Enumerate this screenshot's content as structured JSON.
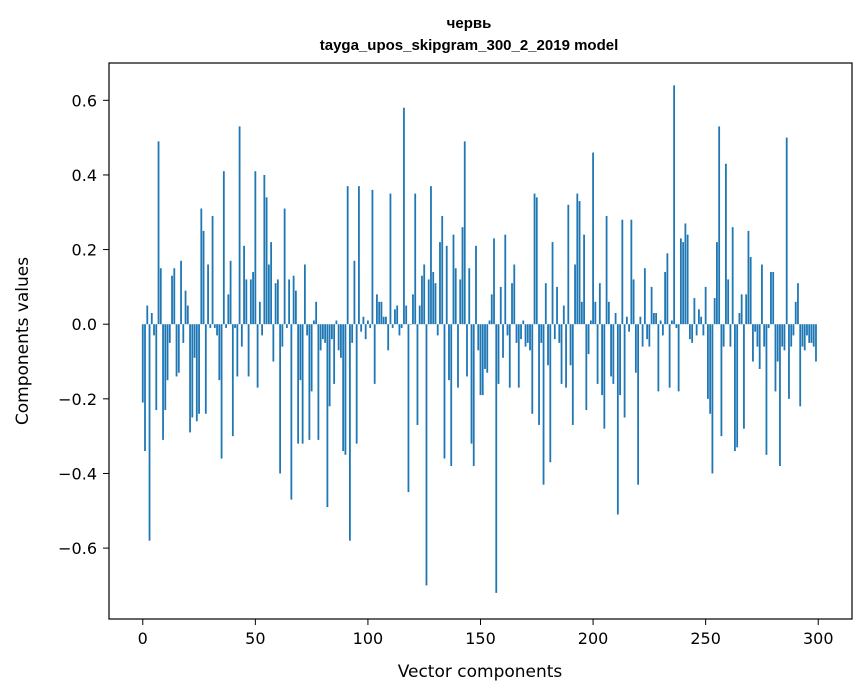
{
  "chart_data": {
    "type": "bar",
    "title": "червь",
    "subtitle": "tayga_upos_skipgram_300_2_2019 model",
    "xlabel": "Vector components",
    "ylabel": "Components values",
    "xlim": [
      -15,
      315
    ],
    "ylim": [
      -0.79,
      0.7
    ],
    "xticks": [
      0,
      50,
      100,
      150,
      200,
      250,
      300
    ],
    "xtick_labels": [
      "0",
      "50",
      "100",
      "150",
      "200",
      "250",
      "300"
    ],
    "yticks": [
      -0.6,
      -0.4,
      -0.2,
      0.0,
      0.2,
      0.4,
      0.6
    ],
    "ytick_labels": [
      "−0.6",
      "−0.4",
      "−0.2",
      "0.0",
      "0.2",
      "0.4",
      "0.6"
    ],
    "grid": false,
    "bar_color": "#1f77b4",
    "values": [
      -0.21,
      -0.34,
      0.05,
      -0.58,
      0.03,
      -0.03,
      -0.23,
      0.49,
      0.15,
      -0.31,
      -0.23,
      -0.15,
      -0.05,
      0.13,
      0.15,
      -0.14,
      -0.13,
      0.17,
      -0.05,
      0.09,
      0.05,
      -0.29,
      -0.25,
      -0.09,
      -0.26,
      -0.24,
      0.31,
      0.25,
      -0.24,
      0.16,
      -0.01,
      0.29,
      -0.01,
      -0.03,
      -0.15,
      -0.36,
      0.41,
      -0.01,
      0.08,
      0.17,
      -0.3,
      -0.01,
      -0.14,
      0.53,
      -0.06,
      0.21,
      0.12,
      -0.14,
      0.12,
      0.14,
      0.41,
      -0.17,
      0.06,
      -0.03,
      0.4,
      0.34,
      0.16,
      0.22,
      -0.1,
      0.11,
      0.12,
      -0.4,
      -0.06,
      0.31,
      -0.01,
      0.12,
      -0.47,
      0.13,
      0.09,
      -0.32,
      -0.15,
      -0.32,
      0.16,
      -0.03,
      -0.31,
      -0.18,
      0.01,
      0.06,
      -0.31,
      -0.07,
      -0.04,
      -0.05,
      -0.49,
      -0.22,
      -0.04,
      -0.16,
      0.01,
      -0.07,
      -0.09,
      -0.34,
      -0.35,
      0.37,
      -0.58,
      -0.05,
      0.17,
      -0.32,
      0.37,
      -0.02,
      0.02,
      -0.04,
      0.01,
      -0.01,
      0.36,
      -0.16,
      0.08,
      0.06,
      0.06,
      0.02,
      0.02,
      -0.07,
      0.35,
      -0.01,
      0.04,
      0.05,
      -0.03,
      -0.01,
      0.58,
      0.05,
      -0.45,
      0.0,
      0.08,
      0.35,
      -0.27,
      0.05,
      0.13,
      0.16,
      -0.7,
      0.12,
      0.37,
      0.14,
      0.11,
      -0.03,
      0.22,
      0.29,
      -0.36,
      0.21,
      -0.15,
      -0.38,
      0.24,
      0.15,
      -0.17,
      0.12,
      0.26,
      0.49,
      -0.14,
      0.15,
      -0.32,
      -0.38,
      0.21,
      -0.07,
      -0.19,
      -0.19,
      -0.12,
      -0.13,
      0.01,
      0.08,
      0.23,
      -0.72,
      -0.16,
      0.1,
      -0.09,
      0.24,
      -0.03,
      -0.17,
      0.11,
      0.16,
      -0.05,
      -0.17,
      -0.04,
      0.01,
      -0.06,
      -0.05,
      -0.07,
      -0.24,
      0.35,
      0.34,
      -0.27,
      -0.05,
      -0.43,
      0.11,
      -0.11,
      -0.37,
      0.22,
      -0.04,
      0.1,
      -0.05,
      -0.16,
      0.05,
      -0.17,
      0.32,
      -0.11,
      -0.27,
      0.16,
      0.35,
      0.33,
      0.06,
      0.24,
      -0.23,
      -0.08,
      0.01,
      0.46,
      0.06,
      -0.16,
      0.11,
      -0.19,
      -0.28,
      0.29,
      0.06,
      -0.14,
      -0.16,
      0.03,
      -0.51,
      -0.19,
      0.28,
      -0.25,
      0.02,
      -0.02,
      0.28,
      0.12,
      -0.13,
      -0.43,
      0.02,
      -0.06,
      0.15,
      -0.04,
      -0.06,
      0.1,
      0.03,
      0.03,
      -0.18,
      0.01,
      -0.03,
      0.14,
      0.19,
      -0.17,
      0.01,
      0.64,
      -0.01,
      -0.18,
      0.23,
      0.22,
      0.27,
      0.24,
      -0.04,
      -0.05,
      0.07,
      -0.03,
      0.04,
      0.02,
      -0.03,
      0.1,
      -0.2,
      -0.24,
      -0.4,
      0.07,
      0.22,
      0.53,
      -0.3,
      -0.06,
      0.43,
      0.12,
      -0.06,
      0.26,
      -0.34,
      -0.33,
      0.03,
      0.08,
      -0.28,
      0.08,
      0.25,
      0.18,
      -0.1,
      -0.02,
      -0.06,
      -0.12,
      0.16,
      -0.06,
      -0.35,
      -0.01,
      0.14,
      0.14,
      -0.18,
      -0.1,
      -0.38,
      -0.06,
      -0.07,
      0.5,
      -0.2,
      -0.06,
      -0.03,
      0.06,
      0.11,
      -0.22,
      -0.06,
      -0.07,
      -0.03,
      -0.05,
      -0.05,
      -0.06,
      -0.1
    ]
  }
}
